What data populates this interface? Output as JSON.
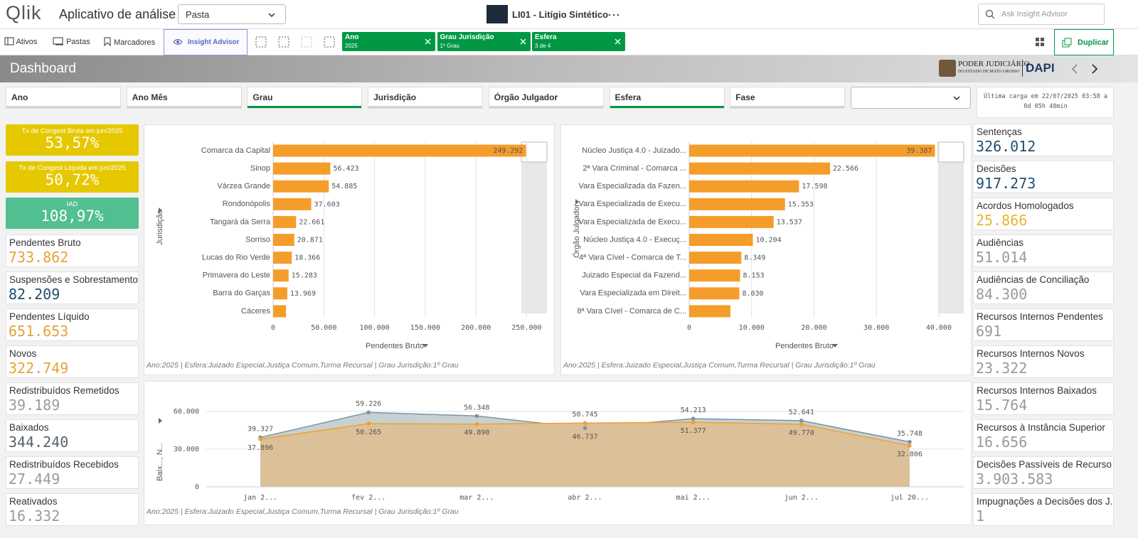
{
  "header": {
    "logo": "Qlik",
    "app_title": "Aplicativo de análise",
    "sheet_dropdown": "Pasta",
    "doc_title": "LI01 - Litígio Sintético",
    "search_placeholder": "Ask Insight Advisor"
  },
  "toolbar": {
    "items": [
      "Ativos",
      "Pastas",
      "Marcadores",
      "Insight Advisor"
    ],
    "selections": [
      {
        "field": "Ano",
        "value": "2025"
      },
      {
        "field": "Grau Jurisdição",
        "value": "1º Grau"
      },
      {
        "field": "Esfera",
        "value": "3 de 4"
      }
    ],
    "duplicate": "Duplicar"
  },
  "sheet": {
    "title": "Dashboard",
    "brand_line1": "PODER JUDICIÁRIO",
    "brand_line2": "DO ESTADO DE MATO GROSSO",
    "brand_unit": "DAPI"
  },
  "filters": [
    {
      "label": "Ano",
      "selected": false
    },
    {
      "label": "Ano Mês",
      "selected": false
    },
    {
      "label": "Grau",
      "selected": true
    },
    {
      "label": "Jurisdição",
      "selected": false
    },
    {
      "label": "Órgão Julgador",
      "selected": false
    },
    {
      "label": "Esfera",
      "selected": true
    },
    {
      "label": "Fase",
      "selected": false
    }
  ],
  "last_load": "Última carga em 22/07/2025 03:58 a 0d 05h 48min",
  "kpis_left": [
    {
      "label": "Tx de Congest Bruta em jun/2025",
      "value": "53,57%",
      "color": "#ffffff",
      "background": "#e6c800"
    },
    {
      "label": "Tx de Congest Líquida em jun/2025",
      "value": "50,72%",
      "color": "#ffffff",
      "background": "#e6c800"
    },
    {
      "label": "IAD",
      "value": "108,97%",
      "color": "#ffffff",
      "background": "#52bf91"
    },
    {
      "label": "Pendentes Bruto",
      "value": "733.862",
      "color": "#e3a33a"
    },
    {
      "label": "Suspensões e Sobrestamento",
      "value": "82.209",
      "color": "#1f4e6e"
    },
    {
      "label": "Pendentes Líquido",
      "value": "651.653",
      "color": "#e3a33a"
    },
    {
      "label": "Novos",
      "value": "322.749",
      "color": "#e3a33a"
    },
    {
      "label": "Redistribuídos Remetidos",
      "value": "39.189",
      "color": "#9a9a9a"
    },
    {
      "label": "Baixados",
      "value": "344.240",
      "color": "#55626e"
    },
    {
      "label": "Redistribuídos Recebidos",
      "value": "27.449",
      "color": "#9a9a9a"
    },
    {
      "label": "Reativados",
      "value": "16.332",
      "color": "#9a9a9a"
    }
  ],
  "kpis_right": [
    {
      "label": "Sentenças",
      "value": "326.012",
      "color": "#1f4e6e"
    },
    {
      "label": "Decisões",
      "value": "917.273",
      "color": "#1f4e6e"
    },
    {
      "label": "Acordos Homologados",
      "value": "25.866",
      "color": "#e8b830"
    },
    {
      "label": "Audiências",
      "value": "51.014",
      "color": "#9a9a9a"
    },
    {
      "label": "Audiências de Conciliação",
      "value": "84.300",
      "color": "#9a9a9a"
    },
    {
      "label": "Recursos Internos Pendentes",
      "value": "691",
      "color": "#9a9a9a"
    },
    {
      "label": "Recursos Internos Novos",
      "value": "23.322",
      "color": "#9a9a9a"
    },
    {
      "label": "Recursos Internos Baixados",
      "value": "15.764",
      "color": "#9a9a9a"
    },
    {
      "label": "Recursos à Instância Superior",
      "value": "16.656",
      "color": "#9a9a9a"
    },
    {
      "label": "Decisões Passíveis de Recurso ...",
      "value": "3.903.583",
      "color": "#9a9a9a"
    },
    {
      "label": "Impugnações a Decisões dos J...",
      "value": "1",
      "color": "#9a9a9a"
    }
  ],
  "chart_data": [
    {
      "type": "bar",
      "orientation": "horizontal",
      "y_axis_title": "Jurisdição",
      "x_axis_title": "Pendentes Bruto",
      "categories": [
        "Comarca da Capital",
        "Sinop",
        "Várzea Grande",
        "Rondonópolis",
        "Tangará da Serra",
        "Sorriso",
        "Lucas do Rio Verde",
        "Primavera do Leste",
        "Barra do Garças",
        "Cáceres"
      ],
      "values": [
        249292,
        56423,
        54885,
        37603,
        22661,
        20871,
        18366,
        15283,
        13969,
        12700
      ],
      "value_labels": [
        "249.292",
        "56.423",
        "54.885",
        "37.603",
        "22.661",
        "20.871",
        "18.366",
        "15.283",
        "13.969",
        null
      ],
      "color": "#f59d2a",
      "xlim": [
        0,
        270000
      ],
      "xticks": [
        0,
        {
          "value": 50000,
          "label": "50.000"
        },
        {
          "value": 100000,
          "label": "100.000"
        },
        {
          "value": 150000,
          "label": "150.000"
        },
        {
          "value": 200000,
          "label": "200.000"
        },
        {
          "value": 250000,
          "label": "250.000"
        }
      ],
      "grid": true,
      "footnote": "Ano:2025 | Esfera:Juizado Especial,Justiça Comum,Turma Recursal | Grau Jurisdição:1º Grau"
    },
    {
      "type": "bar",
      "orientation": "horizontal",
      "y_axis_title": "Órgão Julgador",
      "x_axis_title": "Pendentes Bruto",
      "categories": [
        "Núcleo Justiça 4.0 - Juizado...",
        "2ª Vara Criminal - Comarca ...",
        "Vara Especializada da Fazen...",
        "Vara Especializada de Execu...",
        "Vara Especializada de Execu...",
        "Núcleo Justiça 4.0 - Execuç...",
        "4ª Vara Cível - Comarca de T...",
        "Juizado Especial da Fazend...",
        "Vara Especializada em Direit...",
        "8ª Vara Cível - Comarca de C..."
      ],
      "values": [
        39387,
        22566,
        17598,
        15353,
        13537,
        10204,
        8349,
        8153,
        8030,
        6600
      ],
      "value_labels": [
        "39.387",
        "22.566",
        "17.598",
        "15.353",
        "13.537",
        "10.204",
        "8.349",
        "8.153",
        "8.030",
        null
      ],
      "color": "#f59d2a",
      "xlim": [
        0,
        44000
      ],
      "xticks": [
        0,
        {
          "value": 10000,
          "label": "10.000"
        },
        {
          "value": 20000,
          "label": "20.000"
        },
        {
          "value": 30000,
          "label": "30.000"
        },
        {
          "value": 40000,
          "label": "40.000"
        }
      ],
      "grid": true,
      "footnote": "Ano:2025 | Esfera:Juizado Especial,Justiça Comum,Turma Recursal | Grau Jurisdição:1º Grau"
    },
    {
      "type": "area",
      "y_axis_title": "Baix..., N...",
      "categories": [
        "jan 2...",
        "fev 2...",
        "mar 2...",
        "abr 2...",
        "mai 2...",
        "jun 2...",
        "jul 20..."
      ],
      "series": [
        {
          "color": "#7d93a3",
          "fill": "#c7d1d2",
          "values": [
            39327,
            59226,
            56348,
            46737,
            54213,
            52641,
            35748
          ],
          "value_labels": [
            "39.327",
            "59.226",
            "56.348",
            "46.737",
            "54.213",
            "52.641",
            "35.748"
          ]
        },
        {
          "color": "#f0a030",
          "fill": "#dcc098",
          "values": [
            37896,
            50265,
            49890,
            50745,
            51377,
            49770,
            32806
          ],
          "value_labels": [
            "37.896",
            "50.265",
            "49.890",
            "50.745",
            "51.377",
            "49.770",
            "32.806"
          ]
        }
      ],
      "ylim": [
        0,
        65000
      ],
      "yticks": [
        0,
        {
          "value": 30000,
          "label": "30.000"
        },
        {
          "value": 60000,
          "label": "60.000"
        }
      ],
      "grid": true,
      "footnote": "Ano:2025 | Esfera:Juizado Especial,Justiça Comum,Turma Recursal | Grau Jurisdição:1º Grau"
    }
  ]
}
